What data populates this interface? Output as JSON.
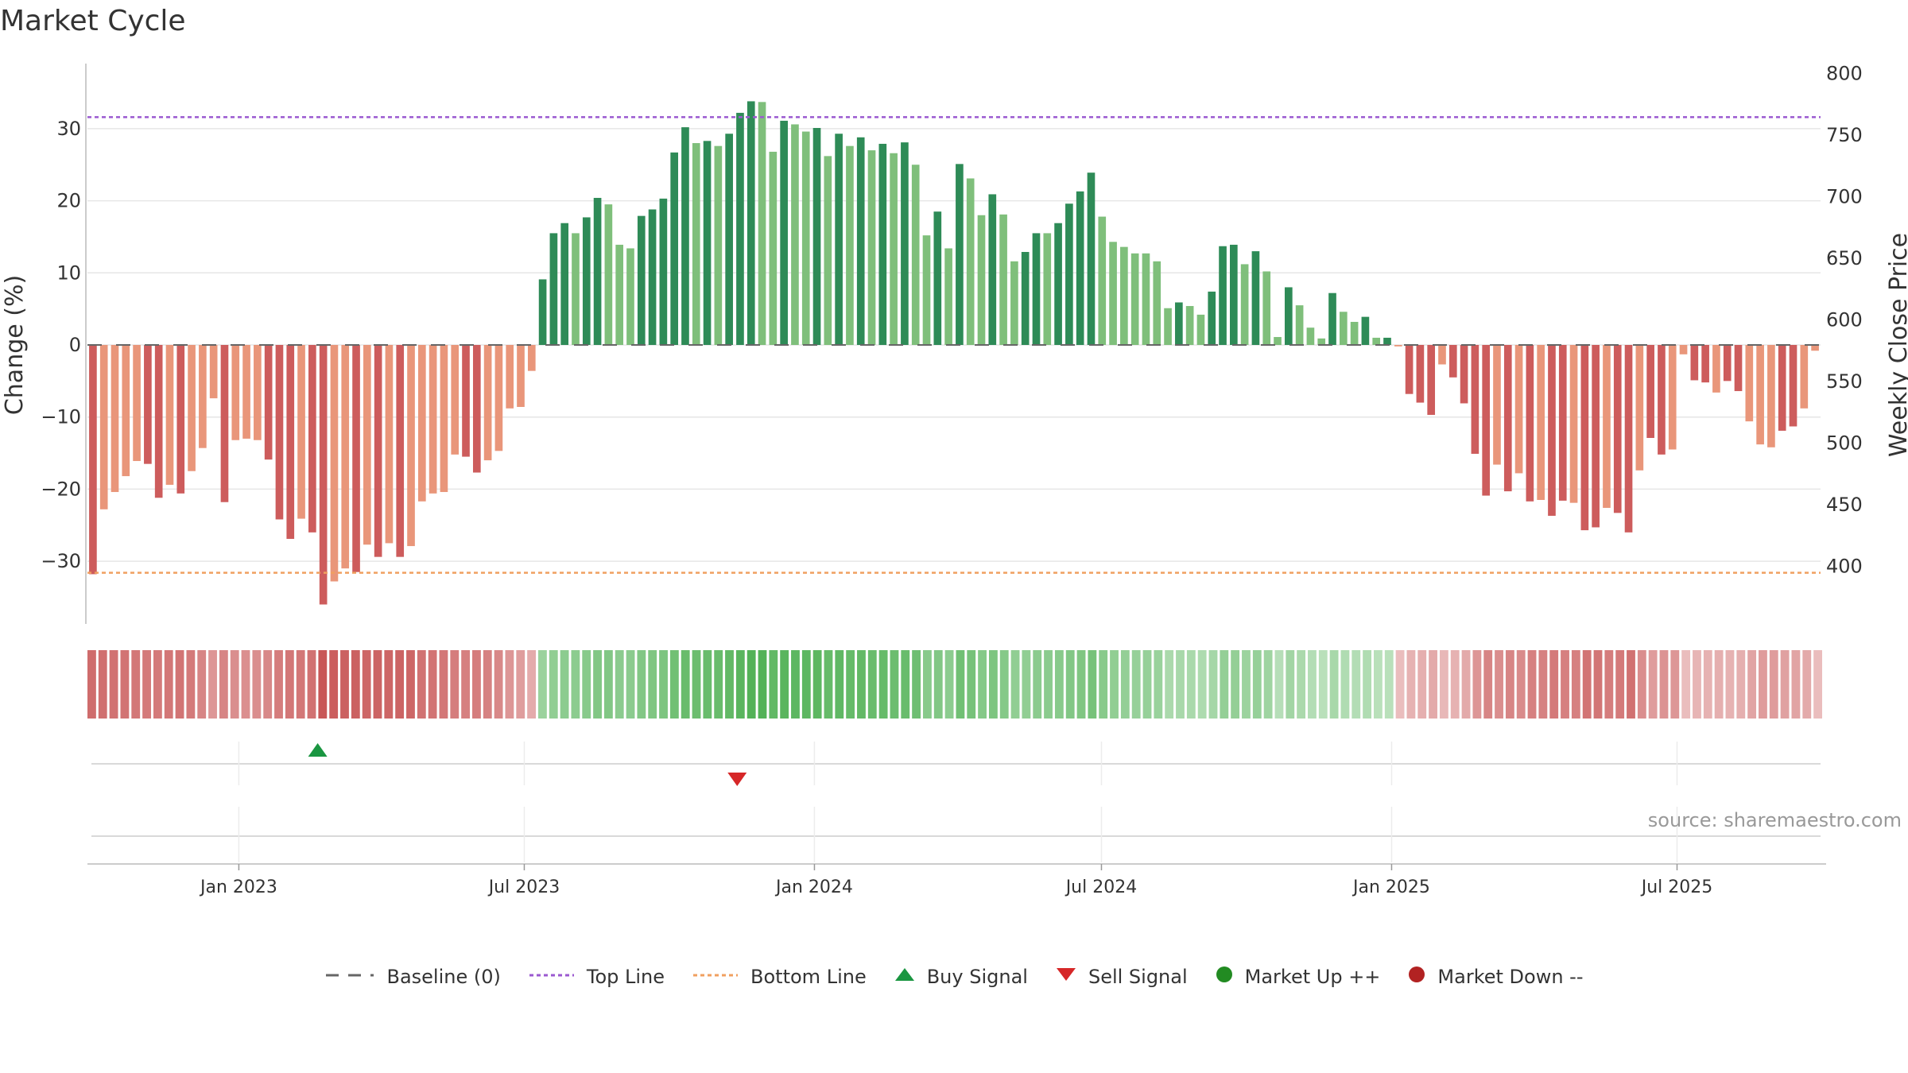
{
  "title": "Market Cycle",
  "source": "source: sharemaestro.com",
  "colors": {
    "strong_up": "#2e8b57",
    "weak_up": "#7fbf7b",
    "strong_down": "#cd5c5c",
    "weak_down": "#e9967a",
    "top_line": "#9b59d0",
    "bottom_line": "#f0a060",
    "baseline": "#666666",
    "buy": "#1a9641",
    "sell": "#d62728",
    "market_up": "#228b22",
    "market_down": "#b22222"
  },
  "legend": [
    {
      "label": "Baseline (0)",
      "icon": "dash-line"
    },
    {
      "label": "Top Line",
      "icon": "dotted-line-purple"
    },
    {
      "label": "Bottom Line",
      "icon": "dotted-line-orange"
    },
    {
      "label": "Buy Signal",
      "icon": "triangle-up-green"
    },
    {
      "label": "Sell Signal",
      "icon": "triangle-down-red"
    },
    {
      "label": "Market Up ++",
      "icon": "dot-green"
    },
    {
      "label": "Market Down --",
      "icon": "dot-red"
    }
  ],
  "chart_data": {
    "type": "bar",
    "title": "Market Cycle",
    "ylabel": "Change (%)",
    "ylabel_right": "Weekly Close Price",
    "ylim": [
      -39,
      39
    ],
    "ylim_right": [
      375,
      800
    ],
    "yticks": [
      "30",
      "20",
      "10",
      "0",
      "−10",
      "−20",
      "−30"
    ],
    "yticks_right": [
      "800",
      "750",
      "700",
      "650",
      "600",
      "550",
      "500",
      "450",
      "400"
    ],
    "top_line": 31.6,
    "bottom_line": -31.6,
    "x_start": "2022-09-27",
    "x_end": "2025-09-30",
    "x_ticks": [
      "Jan 2023",
      "Jul 2023",
      "Jan 2024",
      "Jul 2024",
      "Jan 2025",
      "Jul 2025"
    ],
    "x_tick_dates": [
      "2023-01-01",
      "2023-07-01",
      "2024-01-01",
      "2024-07-01",
      "2025-01-01",
      "2025-07-01"
    ],
    "series": [
      {
        "values": [
          -31.8,
          -22.8,
          -20.4,
          -18.2,
          -16.1,
          -16.5,
          -21.2,
          -19.4,
          -20.6,
          -17.5,
          -14.3,
          -7.4,
          -21.8,
          -13.2,
          -13,
          -13.2,
          -15.9,
          -24.2,
          -26.9,
          -24.1,
          -26,
          -36,
          -32.8,
          -31,
          -31.5,
          -27.7,
          -29.4,
          -27.5,
          -29.4,
          -27.9,
          -21.7,
          -20.6,
          -20.4,
          -15.2,
          -15.5,
          -17.7,
          -16,
          -14.7,
          -8.8,
          -8.6,
          -3.6,
          9.1,
          15.5,
          16.9,
          15.5,
          17.7,
          20.4,
          19.5,
          13.9,
          13.4,
          17.9,
          18.8,
          20.3,
          26.7,
          30.2,
          28,
          28.3,
          27.6,
          29.3,
          32.2,
          33.8,
          33.7,
          26.8,
          31.1,
          30.6,
          29.6,
          30.1,
          26.2,
          29.3,
          27.6,
          28.8,
          27,
          27.9,
          26.6,
          28.1,
          25,
          15.2,
          18.5,
          13.4,
          25.1,
          23.1,
          18,
          20.9,
          18.1,
          11.6,
          12.9,
          15.5,
          15.5,
          16.9,
          19.6,
          21.3,
          23.9,
          17.8,
          14.3,
          13.6,
          12.7,
          12.7,
          11.6,
          5.1,
          5.9,
          5.4,
          4.2,
          7.4,
          13.7,
          13.9,
          11.2,
          13,
          10.2,
          1.1,
          8,
          5.5,
          2.4,
          0.9,
          7.2,
          4.6,
          3.2,
          3.9,
          1,
          1,
          -0.2,
          -6.8,
          -8,
          -9.7,
          -2.7,
          -4.5,
          -8.1,
          -15.1,
          -20.9,
          -16.6,
          -20.3,
          -17.8,
          -21.7,
          -21.5,
          -23.7,
          -21.6,
          -21.9,
          -25.7,
          -25.3,
          -22.6,
          -23.3,
          -26,
          -17.4,
          -12.9,
          -15.2,
          -14.5,
          -1.3,
          -4.9,
          -5.2,
          -6.6,
          -5,
          -6.4,
          -10.6,
          -13.8,
          -14.2,
          -11.9,
          -11.3,
          -8.8,
          -0.8
        ],
        "strong": [
          1,
          0,
          0,
          0,
          0,
          1,
          1,
          0,
          1,
          0,
          0,
          0,
          1,
          0,
          0,
          0,
          1,
          1,
          1,
          0,
          1,
          1,
          0,
          0,
          1,
          0,
          1,
          0,
          1,
          0,
          0,
          0,
          0,
          0,
          1,
          1,
          0,
          0,
          0,
          0,
          0,
          1,
          1,
          1,
          0,
          1,
          1,
          0,
          0,
          0,
          1,
          1,
          1,
          1,
          1,
          0,
          1,
          0,
          1,
          1,
          1,
          0,
          0,
          1,
          0,
          0,
          1,
          0,
          1,
          0,
          1,
          0,
          1,
          0,
          1,
          0,
          0,
          1,
          0,
          1,
          0,
          0,
          1,
          0,
          0,
          1,
          1,
          0,
          1,
          1,
          1,
          1,
          0,
          0,
          0,
          0,
          0,
          0,
          0,
          1,
          0,
          0,
          1,
          1,
          1,
          0,
          1,
          0,
          0,
          1,
          0,
          0,
          0,
          1,
          0,
          0,
          1,
          0,
          1,
          0,
          1,
          1,
          1,
          0,
          1,
          1,
          1,
          1,
          0,
          1,
          0,
          1,
          0,
          1,
          1,
          0,
          1,
          1,
          0,
          1,
          1,
          0,
          1,
          1,
          0,
          0,
          1,
          1,
          0,
          1,
          1,
          0,
          0,
          0,
          1,
          1,
          0,
          0,
          0,
          0
        ]
      }
    ],
    "heat_strip": [
      -0.8,
      -0.78,
      -0.76,
      -0.74,
      -0.72,
      -0.7,
      -0.7,
      -0.72,
      -0.74,
      -0.7,
      -0.62,
      -0.5,
      -0.62,
      -0.56,
      -0.55,
      -0.56,
      -0.6,
      -0.68,
      -0.72,
      -0.72,
      -0.76,
      -0.95,
      -0.9,
      -0.88,
      -0.88,
      -0.84,
      -0.86,
      -0.84,
      -0.86,
      -0.84,
      -0.76,
      -0.74,
      -0.72,
      -0.68,
      -0.66,
      -0.68,
      -0.64,
      -0.6,
      -0.5,
      -0.45,
      -0.35,
      0.45,
      0.52,
      0.55,
      0.55,
      0.58,
      0.62,
      0.62,
      0.56,
      0.56,
      0.62,
      0.64,
      0.66,
      0.74,
      0.8,
      0.78,
      0.8,
      0.8,
      0.84,
      0.9,
      0.95,
      0.95,
      0.85,
      0.9,
      0.88,
      0.88,
      0.88,
      0.82,
      0.86,
      0.82,
      0.84,
      0.8,
      0.82,
      0.78,
      0.8,
      0.76,
      0.58,
      0.62,
      0.55,
      0.74,
      0.7,
      0.6,
      0.66,
      0.6,
      0.52,
      0.52,
      0.56,
      0.56,
      0.58,
      0.62,
      0.64,
      0.7,
      0.58,
      0.52,
      0.5,
      0.48,
      0.48,
      0.46,
      0.34,
      0.36,
      0.35,
      0.32,
      0.38,
      0.5,
      0.5,
      0.44,
      0.48,
      0.42,
      0.26,
      0.4,
      0.34,
      0.28,
      0.24,
      0.36,
      0.3,
      0.28,
      0.3,
      0.24,
      0.24,
      -0.22,
      -0.3,
      -0.32,
      -0.36,
      -0.26,
      -0.3,
      -0.36,
      -0.5,
      -0.62,
      -0.56,
      -0.62,
      -0.58,
      -0.66,
      -0.65,
      -0.7,
      -0.66,
      -0.66,
      -0.74,
      -0.73,
      -0.68,
      -0.7,
      -0.76,
      -0.56,
      -0.46,
      -0.52,
      -0.5,
      -0.22,
      -0.28,
      -0.3,
      -0.32,
      -0.3,
      -0.32,
      -0.4,
      -0.46,
      -0.46,
      -0.42,
      -0.4,
      -0.36,
      -0.22
    ],
    "signals": [
      {
        "type": "buy",
        "date": "2023-02-20"
      },
      {
        "type": "sell",
        "date": "2023-11-13"
      }
    ]
  }
}
